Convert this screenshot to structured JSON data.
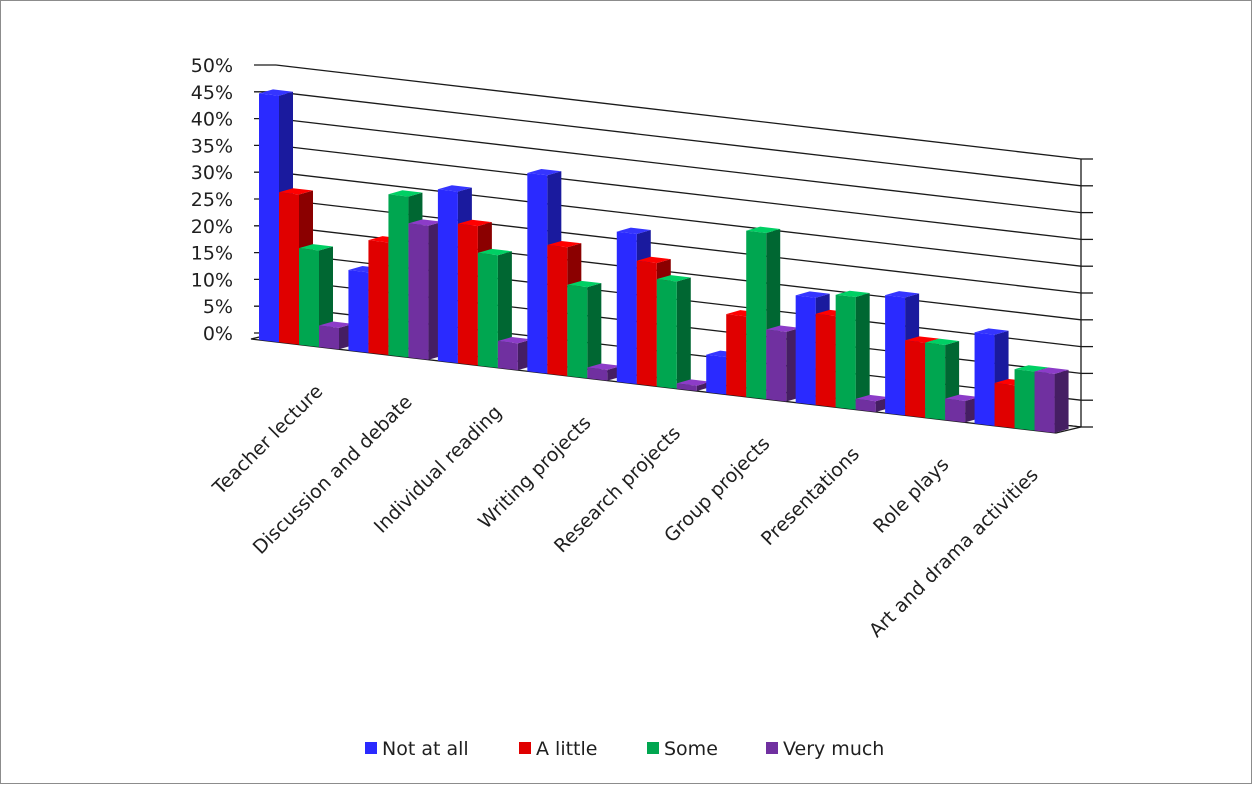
{
  "chart_data": {
    "type": "bar",
    "view": "3d-column",
    "categories": [
      "Teacher lecture",
      "Discussion and debate",
      "Individual reading",
      "Writing projects",
      "Research projects",
      "Group projects",
      "Presentations",
      "Role plays",
      "Art and drama activities"
    ],
    "series": [
      {
        "name": "Not at all",
        "color": "#2a2aff",
        "values": [
          46,
          15,
          32,
          37,
          28,
          7,
          20,
          22,
          17
        ]
      },
      {
        "name": "A little",
        "color": "#e00000",
        "values": [
          28,
          21,
          26,
          24,
          23,
          15,
          17,
          14,
          8
        ]
      },
      {
        "name": "Some",
        "color": "#00a650",
        "values": [
          18,
          30,
          21,
          17,
          20,
          31,
          21,
          14,
          11
        ]
      },
      {
        "name": "Very much",
        "color": "#7030a0",
        "values": [
          4,
          25,
          5,
          2,
          1,
          13,
          2,
          4,
          11
        ]
      }
    ],
    "y_ticks": [
      "0%",
      "5%",
      "10%",
      "15%",
      "20%",
      "25%",
      "30%",
      "35%",
      "40%",
      "45%",
      "50%"
    ],
    "ylim": [
      0,
      50
    ],
    "y_unit": "%",
    "grid": true,
    "legend_position": "bottom"
  }
}
